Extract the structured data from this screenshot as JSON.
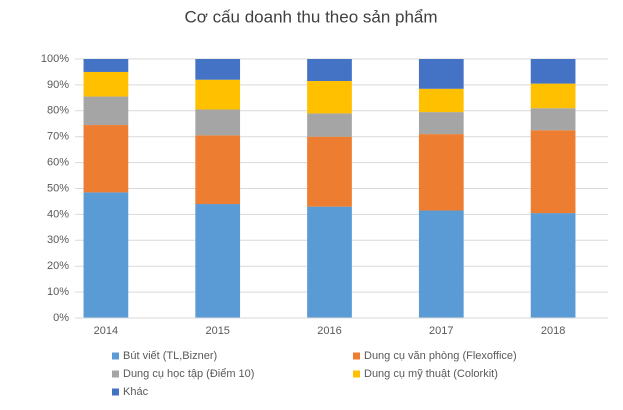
{
  "chart_data": {
    "type": "stacked_bar",
    "title": "Cơ cấu doanh thu theo sản phẩm",
    "categories": [
      "2014",
      "2015",
      "2016",
      "2017",
      "2018"
    ],
    "series": [
      {
        "name": "Bút viết (TL,Bizner)",
        "color": "#5b9bd5",
        "values": [
          48.5,
          44,
          43,
          41.5,
          40.5
        ]
      },
      {
        "name": "Dung cụ văn phòng (Flexoffice)",
        "color": "#ed7d31",
        "values": [
          26,
          26.5,
          27,
          29.5,
          32
        ]
      },
      {
        "name": "Dung cụ học tập (Điểm 10)",
        "color": "#a5a5a5",
        "values": [
          11,
          10,
          9,
          8.5,
          8.5
        ]
      },
      {
        "name": "Dung cụ mỹ thuật (Colorkit)",
        "color": "#ffc000",
        "values": [
          9.5,
          11.5,
          12.5,
          9,
          9.5
        ]
      },
      {
        "name": "Khác",
        "color": "#4472c4",
        "values": [
          5,
          8,
          8.5,
          11.5,
          9.5
        ]
      }
    ],
    "ylim": [
      0,
      100
    ],
    "yticks": [
      {
        "value": 0,
        "label": "0%"
      },
      {
        "value": 10,
        "label": "10%"
      },
      {
        "value": 20,
        "label": "20%"
      },
      {
        "value": 30,
        "label": "30%"
      },
      {
        "value": 40,
        "label": "40%"
      },
      {
        "value": 50,
        "label": "50%"
      },
      {
        "value": 60,
        "label": "60%"
      },
      {
        "value": 70,
        "label": "70%"
      },
      {
        "value": 80,
        "label": "80%"
      },
      {
        "value": 90,
        "label": "90%"
      },
      {
        "value": 100,
        "label": "100%"
      }
    ],
    "grid": true,
    "legend": "bottom"
  }
}
